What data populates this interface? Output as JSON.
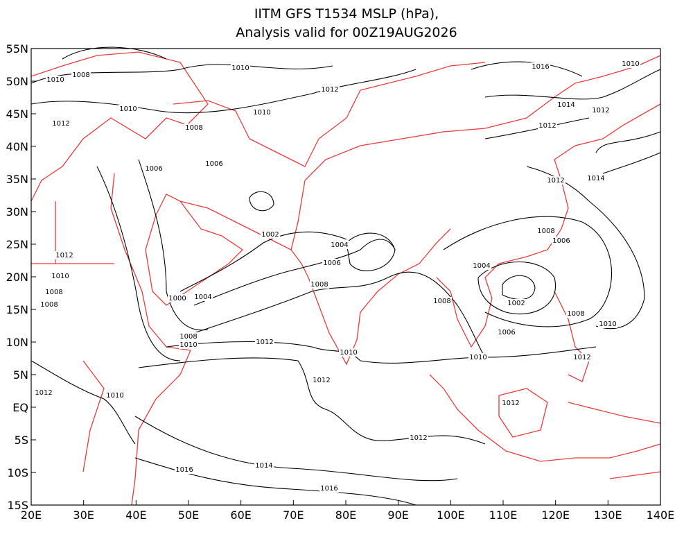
{
  "title": {
    "line1": "IITM GFS T1534 MSLP (hPa),",
    "line2": "Analysis valid for 00Z19AUG2026"
  },
  "xlim": [
    20,
    140
  ],
  "ylim": [
    -15,
    55
  ],
  "xticks": [
    {
      "value": 20,
      "label": "20E"
    },
    {
      "value": 30,
      "label": "30E"
    },
    {
      "value": 40,
      "label": "40E"
    },
    {
      "value": 50,
      "label": "50E"
    },
    {
      "value": 60,
      "label": "60E"
    },
    {
      "value": 70,
      "label": "70E"
    },
    {
      "value": 80,
      "label": "80E"
    },
    {
      "value": 90,
      "label": "90E"
    },
    {
      "value": 100,
      "label": "100E"
    },
    {
      "value": 110,
      "label": "110E"
    },
    {
      "value": 120,
      "label": "120E"
    },
    {
      "value": 130,
      "label": "130E"
    },
    {
      "value": 140,
      "label": "140E"
    }
  ],
  "yticks": [
    {
      "value": 55,
      "label": "55N"
    },
    {
      "value": 50,
      "label": "50N"
    },
    {
      "value": 45,
      "label": "45N"
    },
    {
      "value": 40,
      "label": "40N"
    },
    {
      "value": 35,
      "label": "35N"
    },
    {
      "value": 30,
      "label": "30N"
    },
    {
      "value": 25,
      "label": "25N"
    },
    {
      "value": 20,
      "label": "20N"
    },
    {
      "value": 15,
      "label": "15N"
    },
    {
      "value": 10,
      "label": "10N"
    },
    {
      "value": 5,
      "label": "5N"
    },
    {
      "value": 0,
      "label": "EQ"
    },
    {
      "value": -5,
      "label": "5S"
    },
    {
      "value": -10,
      "label": "10S"
    },
    {
      "value": -15,
      "label": "15S"
    }
  ],
  "contour_labels": [
    1008,
    1010,
    1010,
    1012,
    1016,
    1010,
    1010,
    1010,
    1014,
    1012,
    1012,
    1008,
    1012,
    1006,
    1006,
    1012,
    1014,
    1008,
    1006,
    1002,
    1004,
    1012,
    1006,
    1004,
    1010,
    1008,
    1008,
    1000,
    1004,
    1002,
    1008,
    1008,
    1008,
    1010,
    1006,
    1008,
    1010,
    1012,
    1010,
    1010,
    1012,
    1012,
    1012,
    1010,
    1012,
    1012,
    1014,
    1016,
    1016
  ]
}
